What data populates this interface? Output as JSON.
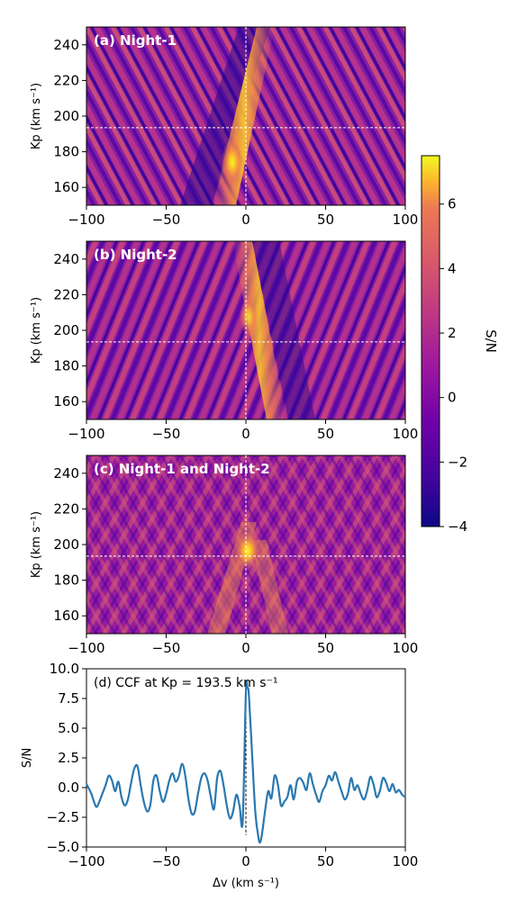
{
  "colors": {
    "line": "#2a78b0",
    "guide": "#ffffff",
    "zero_line": "#000000"
  },
  "colorbar": {
    "label": "S/N",
    "ticks": [
      "6",
      "4",
      "2",
      "0",
      "−2",
      "−4"
    ],
    "tick_values": [
      6,
      4,
      2,
      0,
      -2,
      -4
    ],
    "range": [
      -4,
      7.5
    ],
    "colormap": "plasma"
  },
  "chart_data": [
    {
      "type": "heatmap",
      "title": "(a) Night-1",
      "ylabel": "Kp (km s⁻¹)",
      "xlim": [
        -100,
        100
      ],
      "ylim": [
        150,
        250
      ],
      "xticks": [
        "−100",
        "−50",
        "0",
        "50",
        "100"
      ],
      "xtick_values": [
        -100,
        -50,
        0,
        50,
        100
      ],
      "yticks": [
        "240",
        "220",
        "200",
        "180",
        "160"
      ],
      "ytick_values": [
        240,
        220,
        200,
        180,
        160
      ],
      "guide_lines": {
        "x": 0,
        "y": 193.5
      },
      "peak": {
        "x": 0,
        "y": 193.5,
        "sn": 6.5
      }
    },
    {
      "type": "heatmap",
      "title": "(b) Night-2",
      "ylabel": "Kp (km s⁻¹)",
      "xlim": [
        -100,
        100
      ],
      "ylim": [
        150,
        250
      ],
      "xticks": [
        "−100",
        "−50",
        "0",
        "50",
        "100"
      ],
      "xtick_values": [
        -100,
        -50,
        0,
        50,
        100
      ],
      "yticks": [
        "240",
        "220",
        "200",
        "180",
        "160"
      ],
      "ytick_values": [
        240,
        220,
        200,
        180,
        160
      ],
      "guide_lines": {
        "x": 0,
        "y": 193.5
      },
      "peak": {
        "x": 0,
        "y": 200,
        "sn": 5.0
      }
    },
    {
      "type": "heatmap",
      "title": "(c) Night-1 and Night-2",
      "ylabel": "Kp (km s⁻¹)",
      "xlim": [
        -100,
        100
      ],
      "ylim": [
        150,
        250
      ],
      "xticks": [
        "−100",
        "−50",
        "0",
        "50",
        "100"
      ],
      "xtick_values": [
        -100,
        -50,
        0,
        50,
        100
      ],
      "yticks": [
        "240",
        "220",
        "200",
        "180",
        "160"
      ],
      "ytick_values": [
        240,
        220,
        200,
        180,
        160
      ],
      "guide_lines": {
        "x": 0,
        "y": 193.5
      },
      "peak": {
        "x": 1,
        "y": 195,
        "sn": 7.4
      }
    },
    {
      "type": "line",
      "title": "(d) CCF at Kp = 193.5 km s⁻¹",
      "xlabel": "Δv (km s⁻¹)",
      "ylabel": "S/N",
      "xlim": [
        -100,
        100
      ],
      "ylim": [
        -5,
        10
      ],
      "xticks": [
        "−100",
        "−50",
        "0",
        "50",
        "100"
      ],
      "xtick_values": [
        -100,
        -50,
        0,
        50,
        100
      ],
      "yticks": [
        "10.0",
        "7.5",
        "5.0",
        "2.5",
        "0.0",
        "−2.5",
        "−5.0"
      ],
      "ytick_values": [
        10,
        7.5,
        5,
        2.5,
        0,
        -2.5,
        -5
      ],
      "vline_x": 0,
      "series": [
        {
          "x": [
            -100,
            -97,
            -94,
            -92,
            -90,
            -88,
            -86,
            -84,
            -82,
            -80,
            -78,
            -76,
            -74,
            -72,
            -70,
            -68,
            -66,
            -64,
            -62,
            -60,
            -58,
            -56,
            -54,
            -52,
            -50,
            -48,
            -46,
            -44,
            -42,
            -40,
            -38,
            -36,
            -34,
            -32,
            -30,
            -28,
            -26,
            -24,
            -22,
            -20,
            -18,
            -16,
            -14,
            -12,
            -10,
            -8,
            -6,
            -4,
            -2,
            0,
            1,
            2,
            4,
            6,
            8,
            9,
            10,
            12,
            14,
            16,
            18,
            20,
            22,
            24,
            26,
            28,
            30,
            32,
            34,
            36,
            38,
            40,
            42,
            44,
            46,
            48,
            50,
            52,
            54,
            56,
            58,
            60,
            62,
            64,
            66,
            68,
            70,
            72,
            74,
            76,
            78,
            80,
            82,
            84,
            86,
            88,
            90,
            92,
            94,
            96,
            98,
            100
          ],
          "y": [
            0.3,
            -0.5,
            -1.6,
            -1.2,
            -0.5,
            0.2,
            1.0,
            0.6,
            -0.3,
            0.5,
            -0.8,
            -1.5,
            -1.0,
            0.4,
            1.6,
            1.8,
            0.2,
            -1.2,
            -2.0,
            -1.5,
            0.6,
            1.0,
            -0.3,
            -1.2,
            -0.5,
            0.6,
            1.2,
            0.5,
            1.0,
            2.0,
            1.0,
            -1.0,
            -2.2,
            -2.0,
            -0.5,
            0.8,
            1.2,
            0.6,
            -0.8,
            -1.8,
            0.8,
            1.4,
            0.2,
            -1.5,
            -2.6,
            -2.0,
            -0.6,
            -1.5,
            -2.8,
            8.0,
            8.4,
            7.6,
            2.5,
            -2.2,
            -4.3,
            -4.6,
            -4.0,
            -2.0,
            -0.3,
            -0.9,
            1.0,
            0.3,
            -1.5,
            -1.2,
            -0.8,
            0.2,
            -1.0,
            0.5,
            0.8,
            0.4,
            -0.2,
            1.2,
            0.3,
            -0.6,
            -1.2,
            -0.3,
            0.2,
            1.0,
            0.6,
            1.3,
            0.5,
            -0.3,
            -1.0,
            -0.5,
            0.8,
            -0.2,
            0.2,
            -0.5,
            -1.0,
            -0.3,
            0.9,
            0.3,
            -0.8,
            -0.3,
            0.8,
            0.4,
            -0.3,
            0.3,
            -0.4,
            -0.2,
            -0.6,
            -0.8
          ]
        }
      ]
    }
  ]
}
